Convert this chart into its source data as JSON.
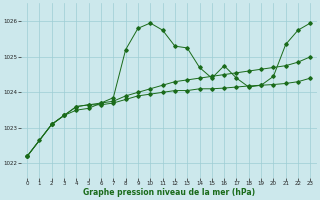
{
  "background_color": "#cce8ec",
  "grid_color": "#9ecdd4",
  "line_color": "#1a6b1a",
  "xlabel": "Graphe pression niveau de la mer (hPa)",
  "x_ticks": [
    0,
    1,
    2,
    3,
    4,
    5,
    6,
    7,
    8,
    9,
    10,
    11,
    12,
    13,
    14,
    15,
    16,
    17,
    18,
    19,
    20,
    21,
    22,
    23
  ],
  "ylim": [
    1021.6,
    1026.5
  ],
  "yticks": [
    1022,
    1023,
    1024,
    1025,
    1026
  ],
  "series1_x": [
    0,
    1,
    2,
    3,
    4,
    5,
    6,
    7,
    8,
    9,
    10,
    11,
    12,
    13,
    14,
    15,
    16,
    17,
    18,
    19,
    20,
    21,
    22,
    23
  ],
  "series1_y": [
    1022.2,
    1022.65,
    1023.1,
    1023.35,
    1023.5,
    1023.55,
    1023.7,
    1023.85,
    1025.2,
    1025.8,
    1025.95,
    1025.75,
    1025.3,
    1025.25,
    1024.7,
    1024.4,
    1024.75,
    1024.4,
    1024.15,
    1024.2,
    1024.45,
    1025.35,
    1025.75,
    1025.95
  ],
  "series2_x": [
    0,
    2,
    3,
    4,
    5,
    6,
    7,
    8,
    9,
    10,
    11,
    12,
    13,
    14,
    15,
    16,
    17,
    18,
    19,
    20,
    21,
    22,
    23
  ],
  "series2_y": [
    1022.2,
    1023.1,
    1023.35,
    1023.6,
    1023.65,
    1023.7,
    1023.75,
    1023.9,
    1024.0,
    1024.1,
    1024.2,
    1024.3,
    1024.35,
    1024.4,
    1024.45,
    1024.5,
    1024.55,
    1024.6,
    1024.65,
    1024.7,
    1024.75,
    1024.85,
    1025.0
  ],
  "series3_x": [
    0,
    2,
    3,
    4,
    5,
    6,
    7,
    8,
    9,
    10,
    11,
    12,
    13,
    14,
    15,
    16,
    17,
    18,
    19,
    20,
    21,
    22,
    23
  ],
  "series3_y": [
    1022.2,
    1023.1,
    1023.35,
    1023.6,
    1023.65,
    1023.65,
    1023.7,
    1023.8,
    1023.9,
    1023.95,
    1024.0,
    1024.05,
    1024.05,
    1024.1,
    1024.1,
    1024.12,
    1024.15,
    1024.18,
    1024.2,
    1024.22,
    1024.25,
    1024.3,
    1024.4
  ]
}
